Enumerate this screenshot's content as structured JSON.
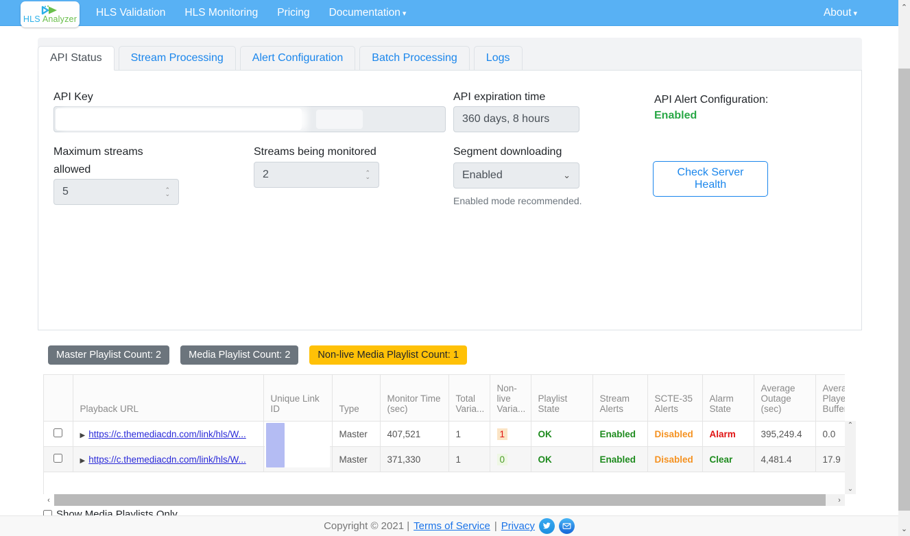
{
  "colors": {
    "navbar_blue": "#58b1f4",
    "accent_blue": "#1a86ec",
    "success_green": "#28a745",
    "warning_orange": "#f59221",
    "danger_red": "#e01212",
    "badge_gray": "#6c757d",
    "badge_yellow": "#ffc107"
  },
  "navbar": {
    "logo_line1": "HLS",
    "logo_line2": "Analyzer",
    "items": [
      {
        "label": "HLS Validation"
      },
      {
        "label": "HLS Monitoring"
      },
      {
        "label": "Pricing"
      },
      {
        "label": "Documentation",
        "caret": "▾"
      }
    ],
    "about_label": "About",
    "about_caret": "▾"
  },
  "tabs": [
    {
      "label": "API Status"
    },
    {
      "label": "Stream Processing"
    },
    {
      "label": "Alert Configuration"
    },
    {
      "label": "Batch Processing"
    },
    {
      "label": "Logs"
    }
  ],
  "api_panel": {
    "api_key_label": "API Key",
    "api_key_value": "",
    "expiration_label": "API expiration time",
    "expiration_value": "360 days, 8 hours",
    "alert_config_label": "API Alert Configuration:",
    "alert_config_value": "Enabled",
    "max_streams_label": "Maximum streams allowed",
    "max_streams_value": "5",
    "monitored_label": "Streams being monitored",
    "monitored_value": "2",
    "segment_label": "Segment downloading",
    "segment_value": "Enabled",
    "segment_help": "Enabled mode recommended.",
    "check_health_label": "Check Server Health"
  },
  "badges": [
    {
      "label": "Master Playlist Count: 2",
      "bg": "#6c757d",
      "fg": "#ffffff"
    },
    {
      "label": "Media Playlist Count: 2",
      "bg": "#6c757d",
      "fg": "#ffffff"
    },
    {
      "label": "Non-live Media Playlist Count: 1",
      "bg": "#ffc107",
      "fg": "#212529"
    }
  ],
  "table": {
    "headers": [
      "",
      "Playback URL",
      "Unique Link ID",
      "Type",
      "Monitor Time (sec)",
      "Total Varia...",
      "Non-live Varia...",
      "Playlist State",
      "Stream Alerts",
      "SCTE-35 Alerts",
      "Alarm State",
      "Average Outage (sec)",
      "Average Player Buffer ("
    ],
    "rows": [
      {
        "url": "https://c.themediacdn.com/link/hls/W...",
        "unique_link_id": "",
        "type": "Master",
        "monitor_time": "407,521",
        "total_variants": "1",
        "nonlive_variants": "1",
        "playlist_state": "OK",
        "stream_alerts": "Enabled",
        "scte35_alerts": "Disabled",
        "alarm_state": "Alarm",
        "avg_outage": "395,249.4",
        "avg_player_buffer": "0.0"
      },
      {
        "url": "https://c.themediacdn.com/link/hls/W...",
        "unique_link_id": "",
        "type": "Master",
        "monitor_time": "371,330",
        "total_variants": "1",
        "nonlive_variants": "0",
        "playlist_state": "OK",
        "stream_alerts": "Enabled",
        "scte35_alerts": "Disabled",
        "alarm_state": "Clear",
        "avg_outage": "4,481.4",
        "avg_player_buffer": "17.9"
      }
    ],
    "show_media_only_label": "Show Media Playlists Only"
  },
  "footer": {
    "copyright": "Copyright © 2021 |",
    "terms_label": "Terms of Service",
    "separator": "|",
    "privacy_label": "Privacy"
  }
}
